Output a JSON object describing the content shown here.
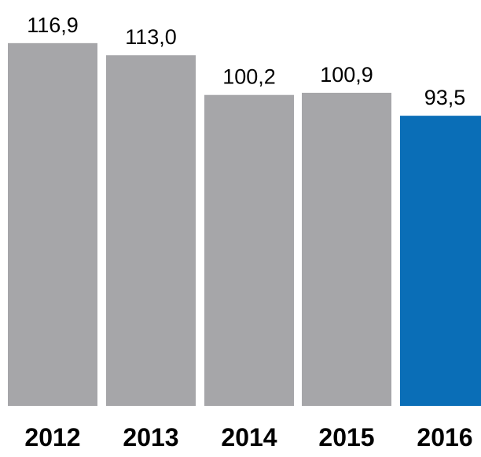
{
  "chart_data": {
    "type": "bar",
    "categories": [
      "2012",
      "2013",
      "2014",
      "2015",
      "2016"
    ],
    "values": [
      116.9,
      113.0,
      100.2,
      100.9,
      93.5
    ],
    "value_labels": [
      "116,9",
      "113,0",
      "100,2",
      "100,9",
      "93,5"
    ],
    "title": "",
    "xlabel": "",
    "ylabel": "",
    "ylim": [
      0,
      130
    ],
    "grid": false,
    "colors": {
      "default": "#a6a6a9",
      "highlight": "#0a6eb7"
    },
    "highlight_index": 4
  }
}
